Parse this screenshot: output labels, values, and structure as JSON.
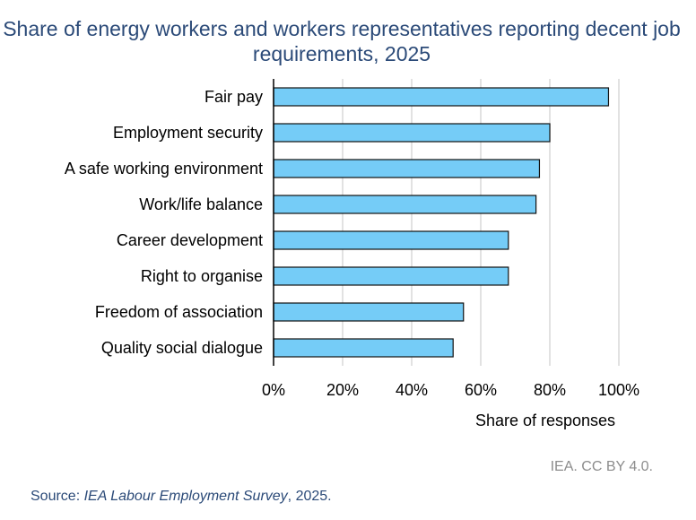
{
  "chart_data": {
    "type": "bar",
    "orientation": "horizontal",
    "title": "Share of energy workers and workers representatives reporting decent job requirements, 2025",
    "xlabel": "Share of responses",
    "ylabel": "",
    "categories": [
      "Fair pay",
      "Employment security",
      "A safe working environment",
      "Work/life balance",
      "Career development",
      "Right to organise",
      "Freedom of association",
      "Quality social dialogue"
    ],
    "values": [
      97,
      80,
      77,
      76,
      68,
      68,
      55,
      52
    ],
    "xlim": [
      0,
      100
    ],
    "xticks": [
      0,
      20,
      40,
      60,
      80,
      100
    ],
    "xtick_labels": [
      "0%",
      "20%",
      "40%",
      "60%",
      "80%",
      "100%"
    ],
    "grid": "vertical",
    "legend": "none",
    "colors": {
      "bar_fill": "#75ccf7",
      "bar_stroke": "#111111",
      "title": "#2b4a78",
      "grid": "#d9d9d9"
    }
  },
  "credit": "IEA. CC BY 4.0.",
  "source": {
    "prefix": "Source: ",
    "name": "IEA Labour Employment Survey",
    "suffix": ", 2025."
  }
}
